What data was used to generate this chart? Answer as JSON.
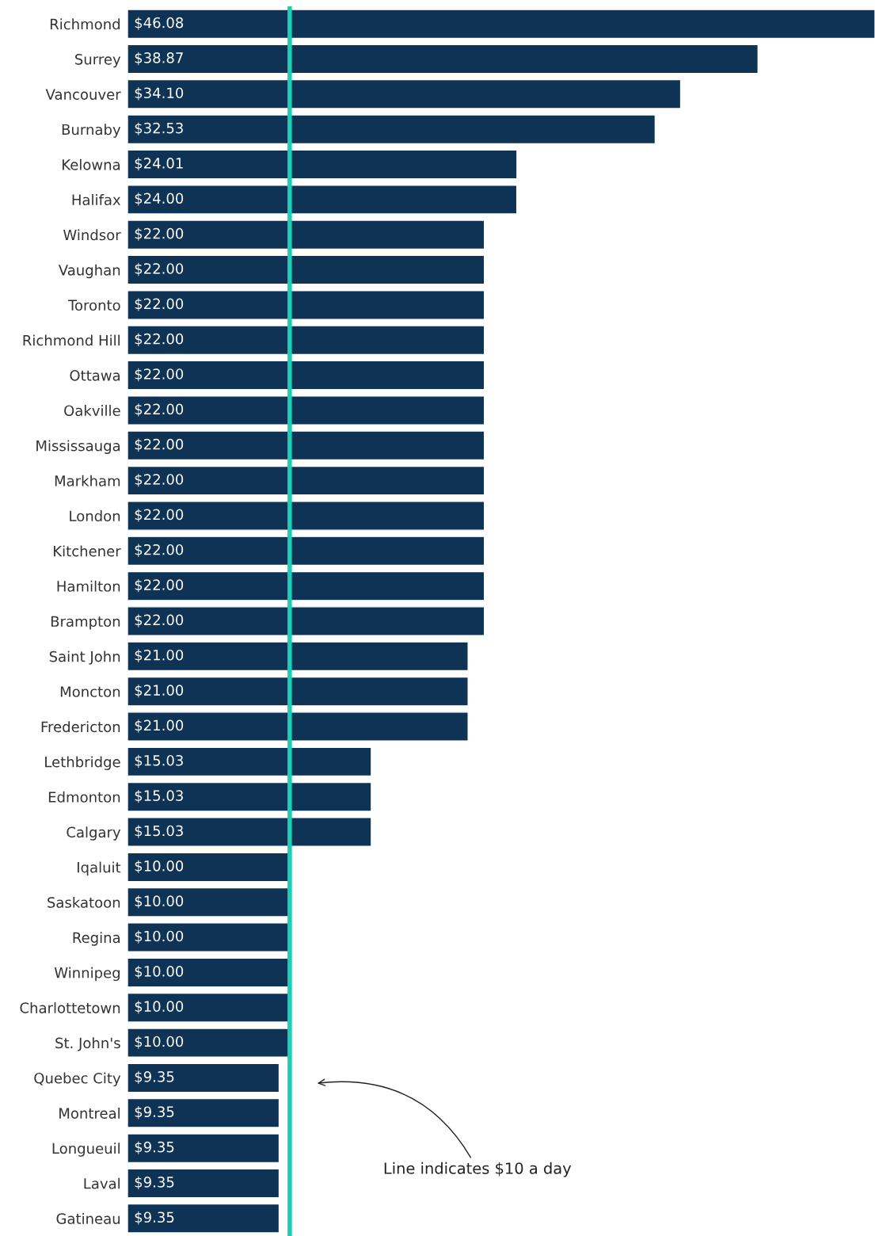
{
  "chart_data": {
    "type": "bar",
    "orientation": "horizontal",
    "categories": [
      "Richmond",
      "Surrey",
      "Vancouver",
      "Burnaby",
      "Kelowna",
      "Halifax",
      "Windsor",
      "Vaughan",
      "Toronto",
      "Richmond Hill",
      "Ottawa",
      "Oakville",
      "Mississauga",
      "Markham",
      "London",
      "Kitchener",
      "Hamilton",
      "Brampton",
      "Saint John",
      "Moncton",
      "Fredericton",
      "Lethbridge",
      "Edmonton",
      "Calgary",
      "Iqaluit",
      "Saskatoon",
      "Regina",
      "Winnipeg",
      "Charlottetown",
      "St. John's",
      "Quebec City",
      "Montreal",
      "Longueuil",
      "Laval",
      "Gatineau"
    ],
    "values": [
      46.08,
      38.87,
      34.1,
      32.53,
      24.01,
      24.0,
      22.0,
      22.0,
      22.0,
      22.0,
      22.0,
      22.0,
      22.0,
      22.0,
      22.0,
      22.0,
      22.0,
      22.0,
      21.0,
      21.0,
      21.0,
      15.03,
      15.03,
      15.03,
      10.0,
      10.0,
      10.0,
      10.0,
      10.0,
      10.0,
      9.35,
      9.35,
      9.35,
      9.35,
      9.35
    ],
    "value_labels": [
      "$46.08",
      "$38.87",
      "$34.10",
      "$32.53",
      "$24.01",
      "$24.00",
      "$22.00",
      "$22.00",
      "$22.00",
      "$22.00",
      "$22.00",
      "$22.00",
      "$22.00",
      "$22.00",
      "$22.00",
      "$22.00",
      "$22.00",
      "$22.00",
      "$21.00",
      "$21.00",
      "$21.00",
      "$15.03",
      "$15.03",
      "$15.03",
      "$10.00",
      "$10.00",
      "$10.00",
      "$10.00",
      "$10.00",
      "$10.00",
      "$9.35",
      "$9.35",
      "$9.35",
      "$9.35",
      "$9.35"
    ],
    "color": "#0f3354",
    "xlim": [
      0,
      46.08
    ],
    "tick_labels": "y",
    "ref_lines": [
      {
        "axis": "x",
        "value": 10,
        "color": "#1ccfb4"
      }
    ],
    "annotations": [
      "Line indicates $10 a day"
    ]
  }
}
